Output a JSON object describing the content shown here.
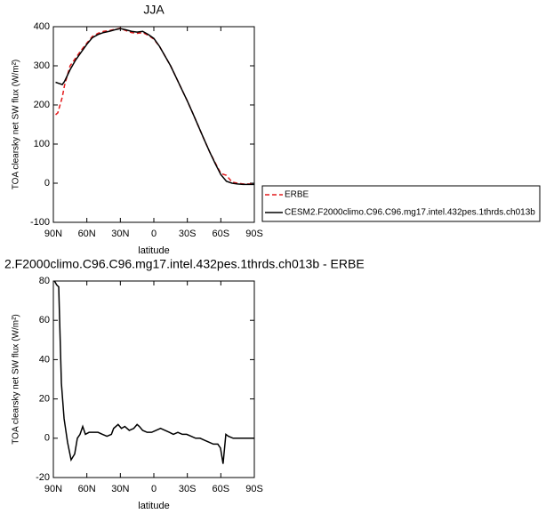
{
  "chart_data": [
    {
      "type": "line",
      "title": "JJA",
      "x_label": "latitude",
      "y_label": "TOA clearsky net SW flux (W/m²)",
      "xlim": [
        90,
        -90
      ],
      "xticks": [
        {
          "value": 90,
          "label": "90N"
        },
        {
          "value": 60,
          "label": "60N"
        },
        {
          "value": 30,
          "label": "30N"
        },
        0,
        {
          "value": -30,
          "label": "30S"
        },
        {
          "value": -60,
          "label": "60S"
        },
        {
          "value": -90,
          "label": "90S"
        }
      ],
      "ylim": [
        -100,
        400
      ],
      "yticks": [
        -100,
        0,
        100,
        200,
        300,
        400
      ],
      "series": [
        {
          "name": "ERBE",
          "color": "#e41a1c",
          "dash": true,
          "x": [
            88,
            86,
            82,
            80,
            75,
            70,
            65,
            60,
            55,
            50,
            45,
            40,
            35,
            30,
            25,
            20,
            15,
            10,
            5,
            0,
            -5,
            -10,
            -15,
            -20,
            -25,
            -30,
            -35,
            -40,
            -45,
            -50,
            -55,
            -60,
            -65,
            -70,
            -75,
            -80,
            -85,
            -90
          ],
          "values": [
            175,
            180,
            220,
            250,
            300,
            320,
            340,
            358,
            375,
            383,
            388,
            390,
            393,
            396,
            390,
            385,
            383,
            385,
            378,
            368,
            350,
            325,
            300,
            270,
            240,
            210,
            178,
            145,
            112,
            80,
            52,
            25,
            20,
            3,
            0,
            -2,
            -2,
            -2
          ]
        },
        {
          "name": "CESM2.F2000climo.C96.C96.mg17.intel.432pes.1thrds.ch013b",
          "color": "#000000",
          "dash": false,
          "x": [
            88,
            85,
            82,
            80,
            75,
            70,
            65,
            60,
            55,
            50,
            45,
            40,
            35,
            30,
            25,
            20,
            15,
            10,
            5,
            0,
            -5,
            -10,
            -15,
            -20,
            -25,
            -30,
            -35,
            -40,
            -45,
            -50,
            -55,
            -60,
            -65,
            -70,
            -75,
            -80,
            -85,
            -90
          ],
          "values": [
            258,
            255,
            252,
            260,
            290,
            315,
            335,
            355,
            372,
            380,
            385,
            388,
            392,
            395,
            392,
            388,
            386,
            388,
            380,
            370,
            350,
            325,
            300,
            270,
            240,
            210,
            178,
            145,
            112,
            80,
            50,
            22,
            5,
            0,
            -2,
            -3,
            -3,
            -3
          ]
        }
      ]
    },
    {
      "type": "line",
      "title": "2.F2000climo.C96.C96.mg17.intel.432pes.1thrds.ch013b - ERBE",
      "x_label": "latitude",
      "y_label": "TOA clearsky net SW flux (W/m²)",
      "xlim": [
        90,
        -90
      ],
      "xticks": [
        {
          "value": 90,
          "label": "90N"
        },
        {
          "value": 60,
          "label": "60N"
        },
        {
          "value": 30,
          "label": "30N"
        },
        0,
        {
          "value": -30,
          "label": "30S"
        },
        {
          "value": -60,
          "label": "60S"
        },
        {
          "value": -90,
          "label": "90S"
        }
      ],
      "ylim": [
        -20,
        80
      ],
      "yticks": [
        -20,
        0,
        20,
        40,
        60,
        80
      ],
      "series": [
        {
          "color": "#000000",
          "dash": false,
          "x": [
            89,
            87,
            85.2,
            82.8,
            80.4,
            77.3,
            74.1,
            70.9,
            68.5,
            66.1,
            63.7,
            61.3,
            58,
            50,
            46,
            42,
            38,
            36,
            32,
            29,
            26,
            22,
            18,
            15,
            13,
            10,
            6,
            2,
            -2,
            -6,
            -10,
            -14,
            -17.5,
            -21.5,
            -25.5,
            -29.4,
            -33.4,
            -37.4,
            -41.4,
            -45.4,
            -49.3,
            -53.3,
            -57.3,
            -59.7,
            -62,
            -64.5,
            -66.8,
            -71,
            -77,
            -90
          ],
          "values": [
            80,
            78,
            77,
            28,
            10,
            -2,
            -11,
            -8,
            0,
            2,
            6,
            2,
            3,
            3,
            2,
            1,
            2,
            5,
            7,
            5,
            6,
            4,
            5,
            7,
            6,
            4,
            3,
            3,
            4,
            5,
            4,
            3,
            2,
            3,
            2,
            2,
            1,
            0,
            0,
            -1,
            -2,
            -3,
            -3,
            -5,
            -13,
            2,
            1,
            0,
            0,
            0
          ]
        }
      ]
    }
  ]
}
